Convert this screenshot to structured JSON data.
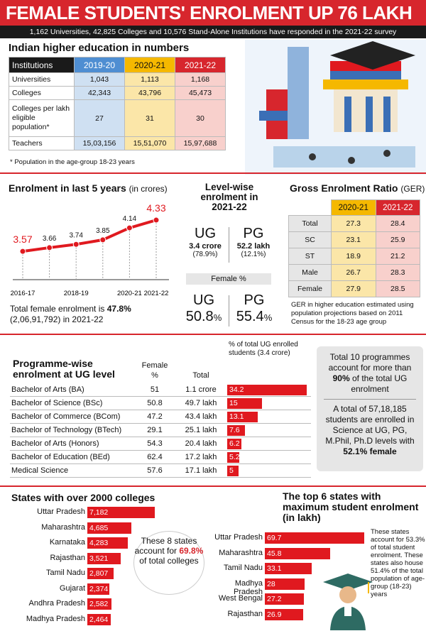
{
  "header": {
    "title": "FEMALE STUDENTS' ENROLMENT UP 76 LAKH IN 5 YEARS",
    "subtitle": "1,162 Universities, 42,825 Colleges and 10,576 Stand-Alone Institutions have responded in the 2021-22 survey"
  },
  "numbers": {
    "title": "Indian higher education in numbers",
    "headers": [
      "Institutions",
      "2019-20",
      "2020-21",
      "2021-22"
    ],
    "rows": [
      {
        "label": "Universities",
        "v": [
          "1,043",
          "1,113",
          "1,168"
        ]
      },
      {
        "label": "Colleges",
        "v": [
          "42,343",
          "43,796",
          "45,473"
        ]
      },
      {
        "label": "Colleges per lakh eligible population*",
        "v": [
          "27",
          "31",
          "30"
        ]
      },
      {
        "label": "Teachers",
        "v": [
          "15,03,156",
          "15,51,070",
          "15,97,688"
        ]
      }
    ],
    "note": "* Population in the age-group 18-23 years"
  },
  "enrolment": {
    "title": "Enrolment in last 5 years",
    "title_unit": "(in crores)",
    "total_prefix": "Total female enrolment is ",
    "total_pct": "47.8%",
    "total_detail": "(2,06,91,792) in 2021-22"
  },
  "level": {
    "title": "Level-wise enrolment in 2021-22",
    "ug_label": "UG",
    "ug_value": "3.4 crore",
    "ug_pct": "(78.9%)",
    "pg_label": "PG",
    "pg_value": "52.2 lakh",
    "pg_pct": "(12.1%)",
    "female_label": "Female %",
    "female_ug_label": "UG",
    "female_ug_value": "50.8",
    "female_pg_label": "PG",
    "female_pg_value": "55.4",
    "pct_sign": "%"
  },
  "ger": {
    "title": "Gross Enrolment Ratio",
    "title_unit": "(GER)",
    "headers": [
      "2020-21",
      "2021-22"
    ],
    "rows": [
      {
        "label": "Total",
        "v": [
          "27.3",
          "28.4"
        ]
      },
      {
        "label": "SC",
        "v": [
          "23.1",
          "25.9"
        ]
      },
      {
        "label": "ST",
        "v": [
          "18.9",
          "21.2"
        ]
      },
      {
        "label": "Male",
        "v": [
          "26.7",
          "28.3"
        ]
      },
      {
        "label": "Female",
        "v": [
          "27.9",
          "28.5"
        ]
      }
    ],
    "note": "GER in higher education estimated using population projections based on 2011 Census for the 18-23 age group"
  },
  "programme": {
    "title_line1": "Programme-wise",
    "title_line2": "enrolment at UG level",
    "col_female": "Female %",
    "col_total": "Total",
    "col_pct": "% of total UG enrolled students (3.4 crore)",
    "rows": [
      {
        "label": "Bachelor of Arts (BA)",
        "female": "51",
        "total": "1.1 crore",
        "pct_label": "34.2"
      },
      {
        "label": "Bachelor of Science (BSc)",
        "female": "50.8",
        "total": "49.7 lakh",
        "pct_label": "15"
      },
      {
        "label": "Bachelor of Commerce (BCom)",
        "female": "47.2",
        "total": "43.4 lakh",
        "pct_label": "13.1"
      },
      {
        "label": "Bachelor of Technology (BTech)",
        "female": "29.1",
        "total": "25.1 lakh",
        "pct_label": "7.6"
      },
      {
        "label": "Bachelor of Arts (Honors)",
        "female": "54.3",
        "total": "20.4 lakh",
        "pct_label": "6.2"
      },
      {
        "label": "Bachelor of Education (BEd)",
        "female": "62.4",
        "total": "17.2 lakh",
        "pct_label": "5.2"
      },
      {
        "label": "Medical Science",
        "female": "57.6",
        "total": "17.1 lakh",
        "pct_label": "5"
      }
    ],
    "side1_a": "Total 10 programmes account for more than ",
    "side1_b": "90%",
    "side1_c": " of the total UG enrolment",
    "side2_a": "A total of 57,18,185 students are enrolled in Science at UG, PG, M.Phil, Ph.D levels with ",
    "side2_b": "52.1% female"
  },
  "colleges": {
    "title": "States with over 2000 colleges",
    "bubble_a": "These 8 states account for ",
    "bubble_b": "69.8%",
    "bubble_c": " of total colleges"
  },
  "top_states": {
    "title": "The top 6 states with maximum student enrolment (in lakh)",
    "note": "These states account for 53.3% of total student enrolment. These states also house 51.4% of the total population of age-group (18-23) years"
  },
  "chart_data": [
    {
      "type": "line",
      "title": "Enrolment in last 5 years (in crores)",
      "x": [
        "2016-17",
        "2017-18",
        "2018-19",
        "2019-20",
        "2020-21",
        "2021-22"
      ],
      "x_tick_labels": [
        "2016-17",
        "2018-19",
        "2020-21",
        "2021-22"
      ],
      "values": [
        3.57,
        3.66,
        3.74,
        3.85,
        4.14,
        4.33
      ],
      "labels": [
        "3.57",
        "3.66",
        "3.74",
        "3.85",
        "4.14",
        "4.33"
      ]
    },
    {
      "type": "bar",
      "title": "% of total UG enrolled students (3.4 crore)",
      "categories": [
        "Bachelor of Arts (BA)",
        "Bachelor of Science (BSc)",
        "Bachelor of Commerce (BCom)",
        "Bachelor of Technology (BTech)",
        "Bachelor of Arts (Honors)",
        "Bachelor of Education (BEd)",
        "Medical Science"
      ],
      "values": [
        34.2,
        15,
        13.1,
        7.6,
        6.2,
        5.2,
        5
      ],
      "labels": [
        "34.2",
        "15",
        "13.1",
        "7.6",
        "6.2",
        "5.2",
        "5"
      ]
    },
    {
      "type": "bar",
      "title": "States with over 2000 colleges",
      "categories": [
        "Uttar Pradesh",
        "Maharashtra",
        "Karnataka",
        "Rajasthan",
        "Tamil Nadu",
        "Gujarat",
        "Andhra Pradesh",
        "Madhya Pradesh"
      ],
      "values": [
        7182,
        4685,
        4283,
        3521,
        2807,
        2374,
        2582,
        2464
      ],
      "labels": [
        "7,182",
        "4,685",
        "4,283",
        "3,521",
        "2,807",
        "2,374",
        "2,582",
        "2,464"
      ]
    },
    {
      "type": "bar",
      "title": "The top 6 states with maximum student enrolment (in lakh)",
      "categories": [
        "Uttar Pradesh",
        "Maharashtra",
        "Tamil Nadu",
        "Madhya Pradesh",
        "West Bengal",
        "Rajasthan"
      ],
      "values": [
        69.7,
        45.8,
        33.1,
        28,
        27.2,
        26.9
      ],
      "labels": [
        "69.7",
        "45.8",
        "33.1",
        "28",
        "27.2",
        "26.9"
      ]
    }
  ]
}
